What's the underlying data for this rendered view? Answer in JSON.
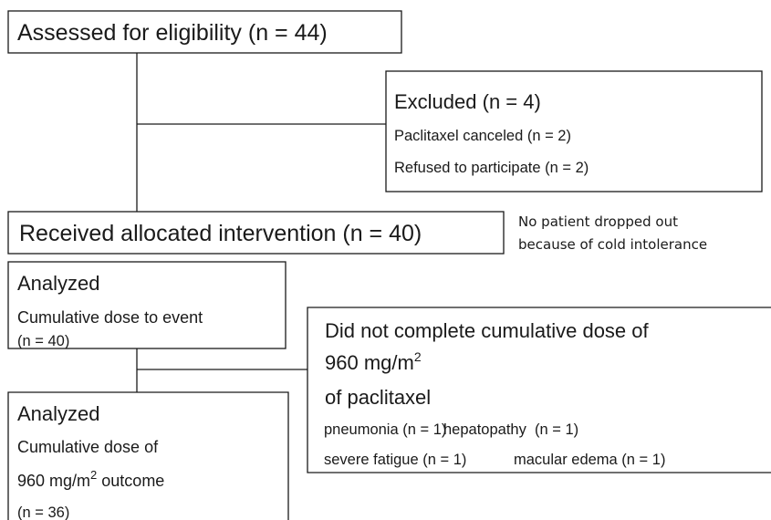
{
  "assessed": {
    "label": "Assessed for eligibility (n = 44)"
  },
  "excluded": {
    "title": "Excluded (n = 4)",
    "items": [
      "Paclitaxel canceled (n = 2)",
      "Refused to participate (n = 2)"
    ]
  },
  "received": {
    "label": "Received allocated intervention (n = 40)"
  },
  "note": {
    "lines": [
      "No patient dropped out",
      "because of cold intolerance"
    ]
  },
  "analyzed_event": {
    "title": "Analyzed",
    "lines": [
      "Cumulative dose to event",
      "(n = 40)"
    ]
  },
  "not_completed": {
    "title_line1": "Did not complete cumulative dose of",
    "dose": "960 mg/m",
    "dose_sup": "2",
    "title_line3": "of paclitaxel",
    "reasons": [
      [
        "pneumonia (n = 1)",
        "hepatopathy  (n = 1)"
      ],
      [
        "severe fatigue (n = 1)",
        "macular edema (n = 1)"
      ]
    ]
  },
  "analyzed_outcome": {
    "title": "Analyzed",
    "line1": "Cumulative dose of",
    "dose": "960 mg/m",
    "dose_sup": "2",
    "dose_suffix": " outcome",
    "n": "(n = 36)"
  }
}
